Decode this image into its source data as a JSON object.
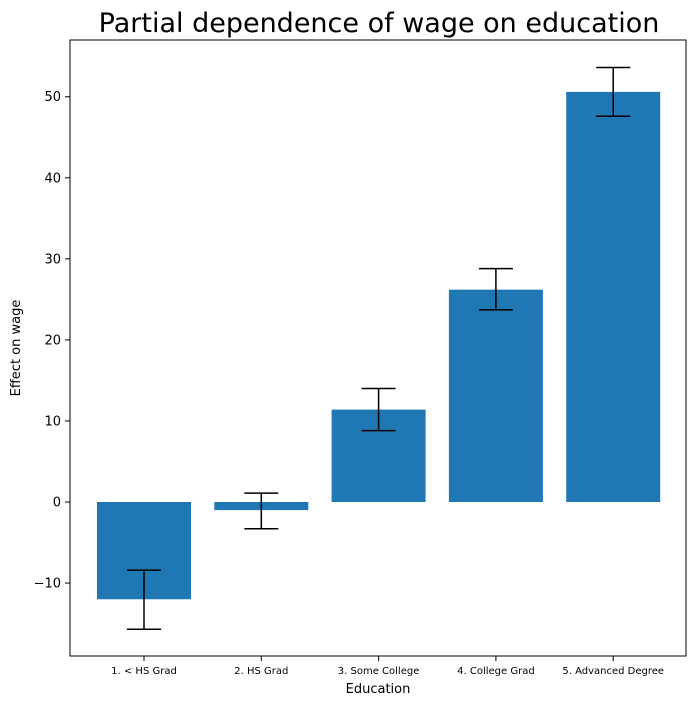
{
  "chart_data": {
    "type": "bar",
    "title": "Partial dependence of wage on education",
    "xlabel": "Education",
    "ylabel": "Effect on wage",
    "categories": [
      "1. < HS Grad",
      "2. HS Grad",
      "3. Some College",
      "4. College Grad",
      "5. Advanced Degree"
    ],
    "values": [
      -12.0,
      -1.0,
      11.4,
      26.2,
      50.6
    ],
    "error_bars": {
      "lower": [
        -15.7,
        -3.3,
        8.8,
        23.7,
        47.6
      ],
      "upper": [
        -8.4,
        1.1,
        14.0,
        28.8,
        53.6
      ]
    },
    "ylim": [
      -19.0,
      57.0
    ],
    "yticks": [
      -10,
      0,
      10,
      20,
      30,
      40,
      50
    ],
    "ytick_labels": [
      "−10",
      "0",
      "10",
      "20",
      "30",
      "40",
      "50"
    ],
    "grid": false,
    "bar_color": "#1f77b4",
    "error_color": "#000000"
  }
}
